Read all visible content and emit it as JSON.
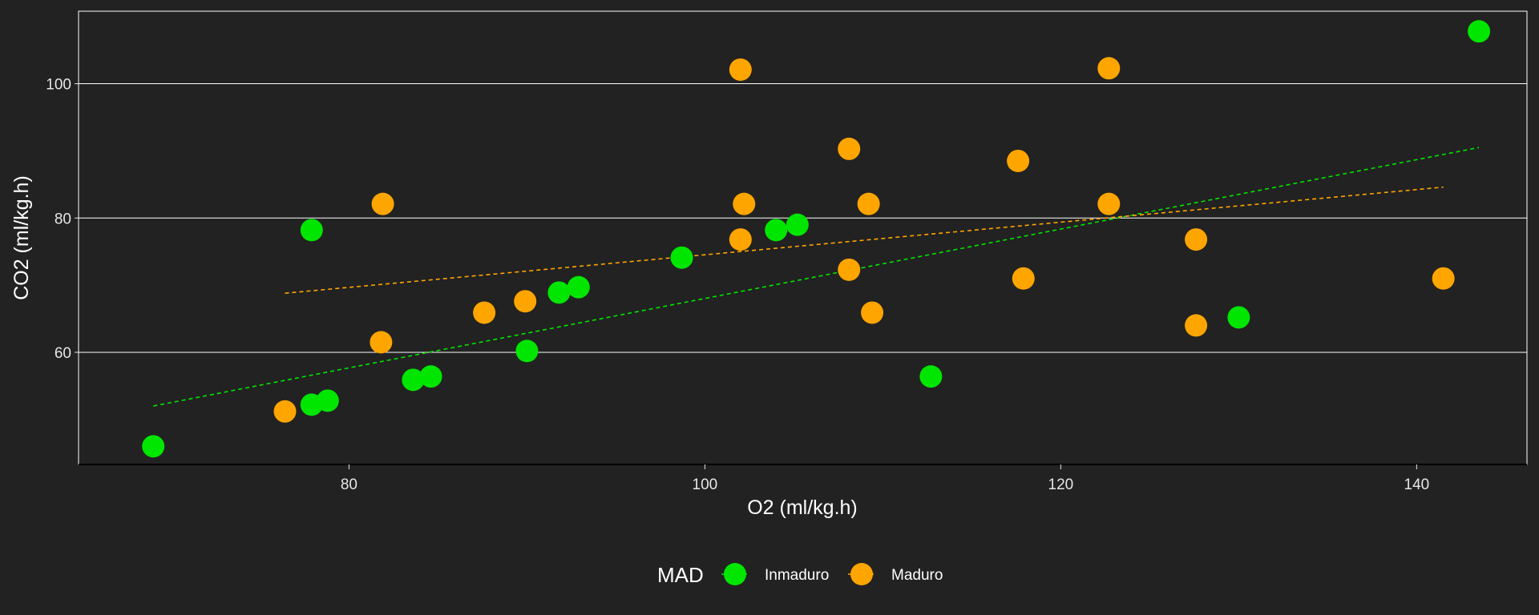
{
  "chart_data": {
    "type": "scatter",
    "title": "",
    "xlabel": "O2 (ml/kg.h)",
    "ylabel": "CO2 (ml/kg.h)",
    "xlim": [
      64.8,
      146.2
    ],
    "ylim": [
      43.3,
      110.8
    ],
    "x_ticks": [
      80,
      100,
      120,
      140
    ],
    "y_ticks": [
      60,
      80,
      100
    ],
    "grid": "horizontal",
    "legend": {
      "title": "MAD",
      "position": "bottom",
      "entries": [
        "Inmaduro",
        "Maduro"
      ]
    },
    "colors": {
      "background": "#222222",
      "grid": "#ffffff",
      "Inmaduro": "#00e600",
      "Maduro": "#ffa500"
    },
    "series": [
      {
        "name": "Inmaduro",
        "color": "#00e600",
        "points": [
          [
            69.0,
            46.0
          ],
          [
            77.9,
            52.2
          ],
          [
            78.8,
            52.8
          ],
          [
            77.9,
            78.2
          ],
          [
            83.6,
            55.9
          ],
          [
            84.6,
            56.4
          ],
          [
            90.0,
            60.2
          ],
          [
            91.8,
            68.9
          ],
          [
            92.9,
            69.7
          ],
          [
            98.7,
            74.1
          ],
          [
            104.0,
            78.2
          ],
          [
            105.2,
            79.0
          ],
          [
            112.7,
            56.4
          ],
          [
            130.0,
            65.2
          ],
          [
            143.5,
            107.8
          ]
        ],
        "trend": {
          "x": [
            69.0,
            143.5
          ],
          "y": [
            52.0,
            90.5
          ]
        }
      },
      {
        "name": "Maduro",
        "color": "#ffa500",
        "points": [
          [
            76.4,
            51.2
          ],
          [
            81.8,
            61.5
          ],
          [
            81.9,
            82.1
          ],
          [
            87.6,
            65.9
          ],
          [
            89.9,
            67.6
          ],
          [
            102.0,
            102.1
          ],
          [
            102.0,
            76.8
          ],
          [
            102.2,
            82.1
          ],
          [
            108.1,
            90.3
          ],
          [
            108.1,
            72.3
          ],
          [
            109.2,
            82.1
          ],
          [
            109.4,
            65.9
          ],
          [
            117.6,
            88.5
          ],
          [
            117.9,
            71.0
          ],
          [
            122.7,
            102.3
          ],
          [
            122.7,
            82.1
          ],
          [
            127.6,
            76.8
          ],
          [
            127.6,
            64.0
          ],
          [
            141.5,
            71.0
          ]
        ],
        "trend": {
          "x": [
            76.4,
            141.5
          ],
          "y": [
            68.8,
            84.6
          ]
        }
      }
    ]
  }
}
